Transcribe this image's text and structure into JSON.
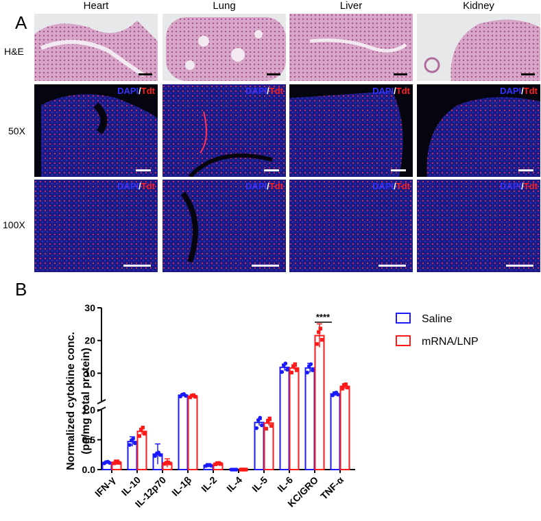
{
  "panel_a": {
    "letter": "A",
    "columns": [
      "Heart",
      "Lung",
      "Liver",
      "Kidney"
    ],
    "rows": [
      "H&E",
      "50X",
      "100X"
    ],
    "stain_label": {
      "dapi": "DAPI",
      "slash": "/",
      "tdt": "Tdt"
    }
  },
  "panel_b": {
    "letter": "B",
    "legend": [
      {
        "name": "Saline",
        "color": "#1a1aff"
      },
      {
        "name": "mRNA/LNP",
        "color": "#ff1a1a"
      }
    ],
    "significance": "****"
  },
  "chart_data": {
    "type": "bar",
    "ylabel_line1": "Normalized cytokine conc.",
    "ylabel_line2": "(pg/mg total protein)",
    "categories": [
      "IFN-γ",
      "IL-10",
      "IL-12p70",
      "IL-1β",
      "IL-2",
      "IL-4",
      "IL-5",
      "IL-6",
      "KC/GRO",
      "TNF-α"
    ],
    "series": [
      {
        "name": "Saline",
        "values": [
          0.12,
          0.47,
          0.26,
          3.3,
          0.07,
          0.0,
          0.79,
          11.8,
          11.6,
          3.7
        ],
        "errors": [
          0.02,
          0.08,
          0.17,
          0.3,
          0.03,
          0.0,
          0.05,
          1.0,
          1.4,
          0.6
        ]
      },
      {
        "name": "mRNA/LNP",
        "values": [
          0.12,
          0.64,
          0.11,
          3.0,
          0.1,
          0.0,
          0.78,
          11.6,
          21.5,
          6.0
        ],
        "errors": [
          0.04,
          0.05,
          0.07,
          0.3,
          0.03,
          0.0,
          0.04,
          0.5,
          3.6,
          0.8
        ]
      }
    ],
    "axis_lower": {
      "range": [
        0,
        1.0
      ],
      "ticks": [
        "0.0",
        "0.5",
        "1.0"
      ]
    },
    "axis_upper": {
      "range": [
        1.5,
        30
      ],
      "ticks": [
        "10",
        "20",
        "30"
      ]
    },
    "broken_axis": true
  }
}
